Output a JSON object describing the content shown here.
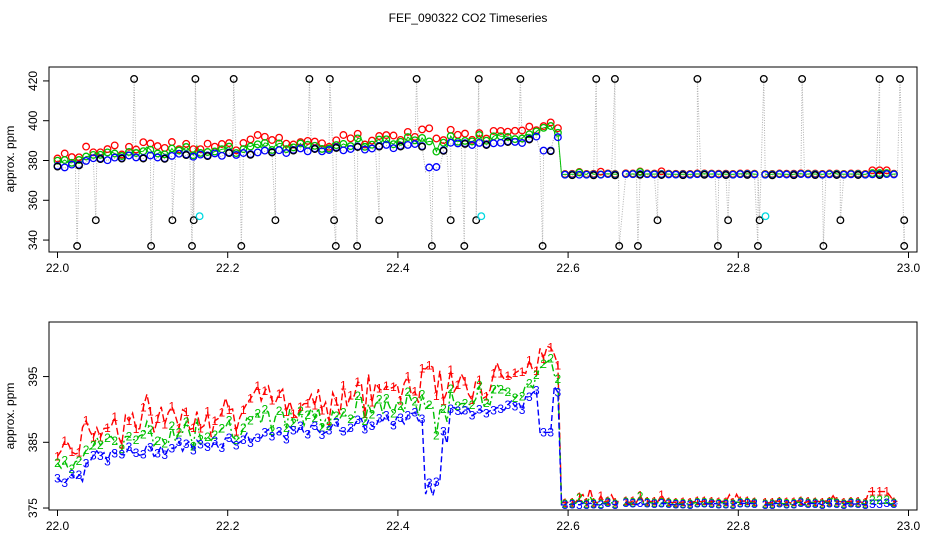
{
  "figure": {
    "title": "FEF_090322  CO2 Timeseries"
  },
  "chart_data": [
    {
      "type": "scatter",
      "ylabel": "approx. ppm",
      "xlim": [
        21.99,
        23.01
      ],
      "ylim": [
        334,
        427
      ],
      "xticks": [
        {
          "v": 22.0,
          "label": "22.0"
        },
        {
          "v": 22.2,
          "label": "22.2"
        },
        {
          "v": 22.4,
          "label": "22.4"
        },
        {
          "v": 22.6,
          "label": "22.6"
        },
        {
          "v": 22.8,
          "label": "22.8"
        },
        {
          "v": 23.0,
          "label": "23.0"
        }
      ],
      "yticks": [
        {
          "v": 340,
          "label": "340"
        },
        {
          "v": 360,
          "label": "360"
        },
        {
          "v": 380,
          "label": "380"
        },
        {
          "v": 400,
          "label": "400"
        },
        {
          "v": 420,
          "label": "420"
        }
      ],
      "colors": {
        "s1": "#ff0000",
        "s2": "#00c000",
        "s3": "#0000ff",
        "raw": "#000000",
        "cyan": "#00d8e0",
        "raw_line": "#b0b0b0"
      },
      "outlier_high": [
        22.09,
        22.162,
        22.207,
        22.296,
        22.32,
        22.422,
        22.495,
        22.544,
        22.633,
        22.655,
        22.752,
        22.83,
        22.875,
        22.966,
        22.99
      ],
      "outlier_low": [
        22.023,
        22.11,
        22.158,
        22.216,
        22.327,
        22.352,
        22.44,
        22.478,
        22.57,
        22.66,
        22.682,
        22.776,
        22.823,
        22.9,
        22.995
      ],
      "outlier_mid": [
        22.045,
        22.135,
        22.16,
        22.256,
        22.325,
        22.378,
        22.462,
        22.492,
        22.705,
        22.788,
        22.825,
        22.92,
        22.995
      ],
      "outlier_c": [
        22.167,
        22.498,
        22.832
      ],
      "gap_starts": [
        22.663,
        22.827
      ]
    },
    {
      "type": "line",
      "ylabel": "approx. ppm",
      "xlim": [
        21.99,
        23.01
      ],
      "ylim": [
        374.7,
        403.3
      ],
      "xticks": [
        {
          "v": 22.0,
          "label": "22.0"
        },
        {
          "v": 22.2,
          "label": "22.2"
        },
        {
          "v": 22.4,
          "label": "22.4"
        },
        {
          "v": 22.6,
          "label": "22.6"
        },
        {
          "v": 22.8,
          "label": "22.8"
        },
        {
          "v": 23.0,
          "label": "23.0"
        }
      ],
      "yticks": [
        {
          "v": 375,
          "label": "375"
        },
        {
          "v": 385,
          "label": "385"
        },
        {
          "v": 395,
          "label": "395"
        }
      ],
      "series": [
        {
          "symbol": "1",
          "color": "#ff0000"
        },
        {
          "symbol": "2",
          "color": "#00c000"
        },
        {
          "symbol": "3",
          "color": "#0000ff"
        }
      ],
      "gap_starts": [
        22.663,
        22.827
      ]
    }
  ]
}
